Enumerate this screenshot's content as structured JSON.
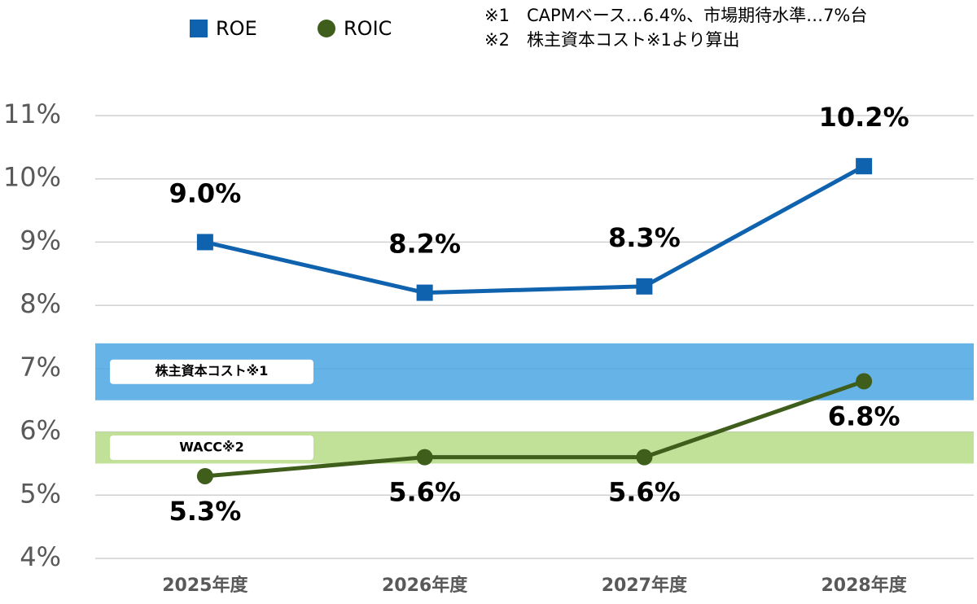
{
  "chart_data": {
    "type": "line",
    "categories": [
      "2025年度",
      "2026年度",
      "2027年度",
      "2028年度"
    ],
    "series": [
      {
        "name": "ROE",
        "color": "#0f62ae",
        "marker": "square",
        "values": [
          9.0,
          8.2,
          8.3,
          10.2
        ],
        "value_labels": [
          "9.0%",
          "8.2%",
          "8.3%",
          "10.2%"
        ]
      },
      {
        "name": "ROIC",
        "color": "#3f5e1c",
        "marker": "circle",
        "values": [
          5.3,
          5.6,
          5.6,
          6.8
        ],
        "value_labels": [
          "5.3%",
          "5.6%",
          "5.6%",
          "6.8%"
        ]
      }
    ],
    "bands": [
      {
        "label": "株主資本コスト※1",
        "range": [
          6.5,
          7.4
        ],
        "color": "#4ba6e3"
      },
      {
        "label": "WACC※2",
        "range": [
          5.5,
          6.0
        ],
        "color": "#b6da86"
      }
    ],
    "notes": [
      "※1　CAPMベース…6.4%、市場期待水準…7%台",
      "※2　株主資本コスト※1より算出"
    ],
    "ylim": [
      4,
      11
    ],
    "yticks": [
      {
        "value": 4,
        "label": "4%"
      },
      {
        "value": 5,
        "label": "5%"
      },
      {
        "value": 6,
        "label": "6%"
      },
      {
        "value": 7,
        "label": "7%"
      },
      {
        "value": 8,
        "label": "8%"
      },
      {
        "value": 9,
        "label": "9%"
      },
      {
        "value": 10,
        "label": "10%"
      },
      {
        "value": 11,
        "label": "11%"
      }
    ],
    "grid": true
  }
}
